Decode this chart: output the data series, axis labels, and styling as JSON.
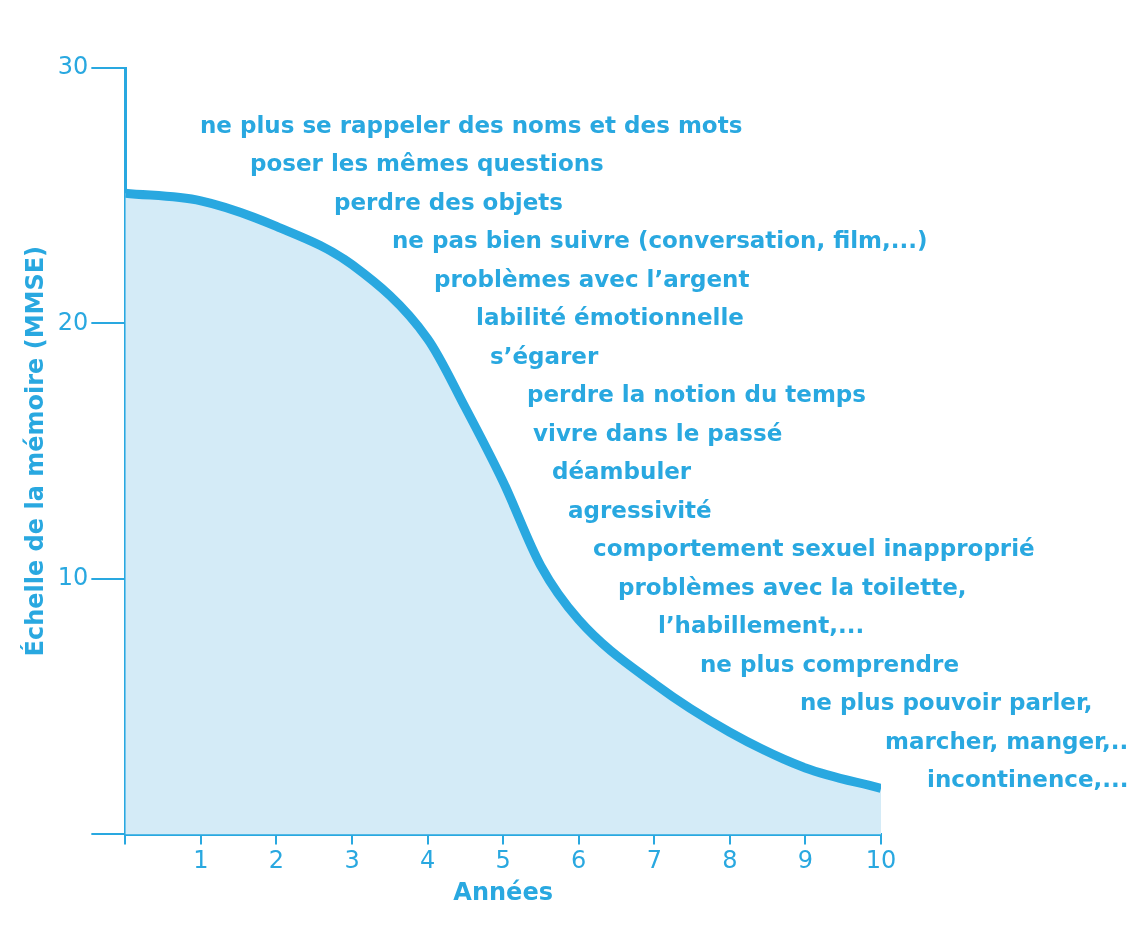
{
  "chart_data": {
    "type": "area",
    "xlabel": "Années",
    "ylabel": "Échelle de la mémoire (MMSE)",
    "x": [
      0,
      1,
      2,
      3,
      4,
      4.5,
      5,
      5.5,
      6,
      7,
      8,
      9,
      10
    ],
    "series": [
      {
        "color": "#29a8e0",
        "values": [
          25.1,
          24.8,
          23.8,
          22.3,
          19.4,
          16.7,
          13.8,
          10.5,
          8.4,
          5.9,
          4.0,
          2.6,
          1.8
        ]
      }
    ],
    "xlim": [
      0,
      10
    ],
    "xticks": [
      {
        "value": 0,
        "label": null
      },
      1,
      2,
      3,
      4,
      5,
      6,
      7,
      8,
      9,
      10
    ],
    "ylim": [
      0,
      30
    ],
    "yticks": [
      {
        "value": 0,
        "label": null
      },
      10,
      20,
      30
    ],
    "grid": false,
    "legend": false,
    "annotations": [
      "ne plus se rappeler des noms et des mots",
      "poser les mêmes questions",
      "perdre des objets",
      "ne pas bien suivre (conversation, film,...)",
      "problèmes avec l’argent",
      "labilité émotionnelle",
      "s’égarer",
      "perdre la notion du temps",
      "vivre dans le passé",
      "déambuler",
      "agressivité",
      "comportement sexuel inapproprié",
      "problèmes avec la toilette,",
      "l’habillement,...",
      "ne plus comprendre",
      "ne plus pouvoir parler,",
      "marcher, manger,..",
      "incontinence,..."
    ]
  }
}
